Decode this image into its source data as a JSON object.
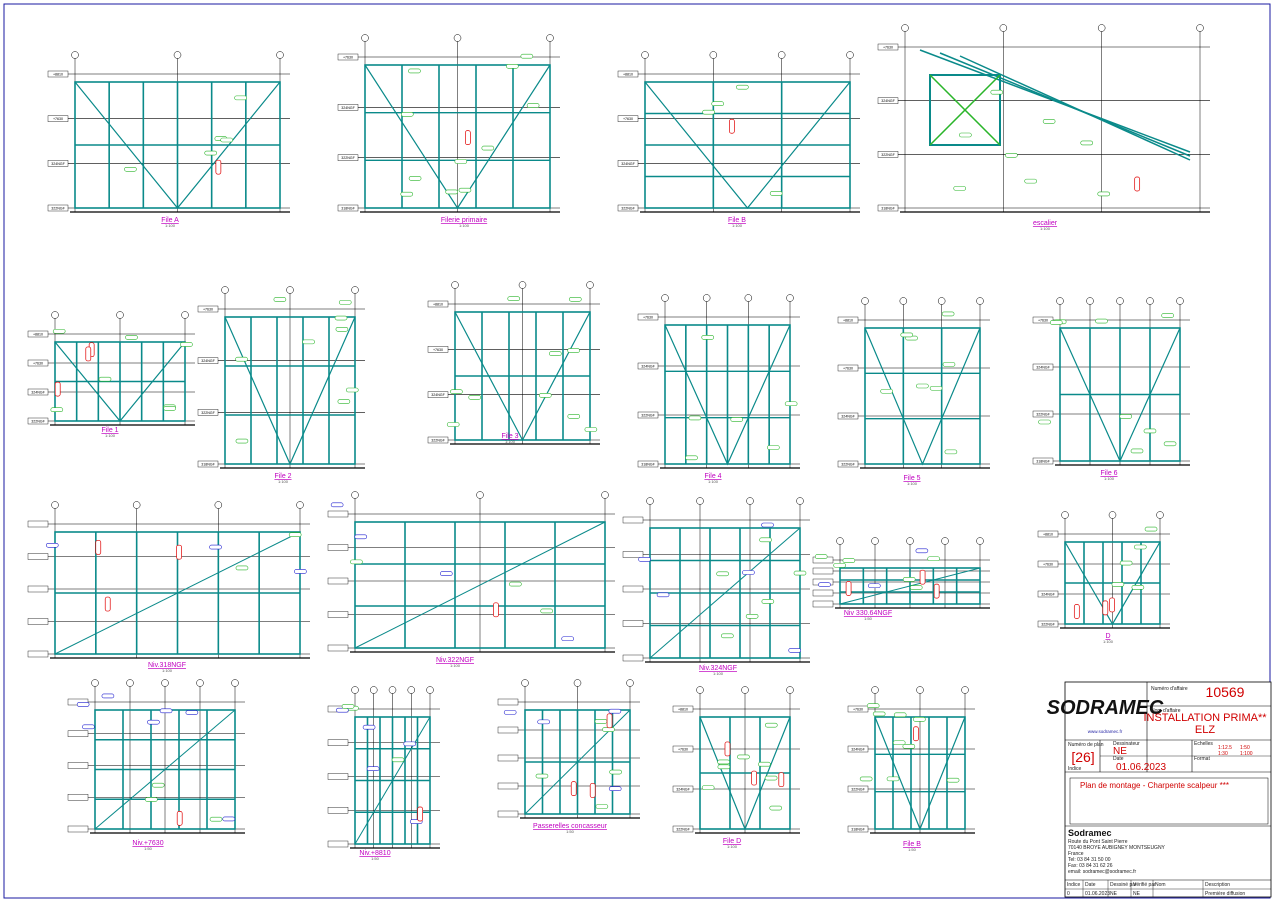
{
  "drawing": {
    "levels": [
      "+8810",
      "+7630",
      "324NGF",
      "322NGF",
      "318NGF"
    ],
    "views": [
      {
        "label": "File A",
        "scale": "1:100"
      },
      {
        "label": "Filerie primaire",
        "scale": "1:100"
      },
      {
        "label": "File B",
        "scale": "1:100"
      },
      {
        "label": "escalier",
        "scale": "1:100"
      },
      {
        "label": "File 1",
        "scale": "1:100"
      },
      {
        "label": "File 2",
        "scale": "1:100"
      },
      {
        "label": "File 3",
        "scale": "1:100"
      },
      {
        "label": "File 4",
        "scale": "1:100"
      },
      {
        "label": "File 5",
        "scale": "1:100"
      },
      {
        "label": "File 6",
        "scale": "1:100"
      },
      {
        "label": "Niv.318NGF",
        "scale": "1:100"
      },
      {
        "label": "Niv.322NGF",
        "scale": "1:100"
      },
      {
        "label": "Niv.324NGF",
        "scale": "1:100"
      },
      {
        "label": "Niv 330.64NGF",
        "scale": "1:50"
      },
      {
        "label": "D",
        "scale": "1:100"
      },
      {
        "label": "Niv.+7630",
        "scale": "1:50"
      },
      {
        "label": "Niv.+8810",
        "scale": "1:50"
      },
      {
        "label": "Passerelles concasseur",
        "scale": "1:50"
      },
      {
        "label": "File D",
        "scale": "1:100"
      },
      {
        "label": "File B",
        "scale": "1:50"
      }
    ],
    "title_block": {
      "logo": "SODRAMEC",
      "website": "www.sodramec.fr",
      "job_number_label": "Numéro d'affaire",
      "job_number": "10569",
      "job_name_label": "Nom d'affaire",
      "job_name": "INSTALLATION PRIMA** ELZ",
      "plan_number_label": "Numéro de plan",
      "plan_number": "[26]",
      "index_label": "Indice",
      "drafter_label": "Dessinateur",
      "drafter": "NE",
      "date_label": "Date",
      "date": "01.06.2023",
      "scales_label": "Echelles",
      "scales": [
        "1:12.5",
        "1:50",
        "1:30",
        "1:100"
      ],
      "format_label": "Format",
      "plan_title": "Plan de montage - Charpente scalpeur ***",
      "company": "Sodramec",
      "address": [
        "Route du Pont Saint Pierre",
        "70140 BROYE AUBIGNEY MONTSEUGNY",
        "France",
        "Tel: 03 84 31 50 00",
        "Fax: 03 84 31 62 26",
        "email: sodramec@sodramec.fr"
      ],
      "revision_header": [
        "Indice",
        "Date",
        "Dessiné par",
        "Vérifié par",
        "Nom",
        "Description"
      ],
      "revision_row": [
        "0",
        "01.06.2023",
        "NE",
        "NE",
        "",
        "Première diffusion"
      ]
    }
  }
}
